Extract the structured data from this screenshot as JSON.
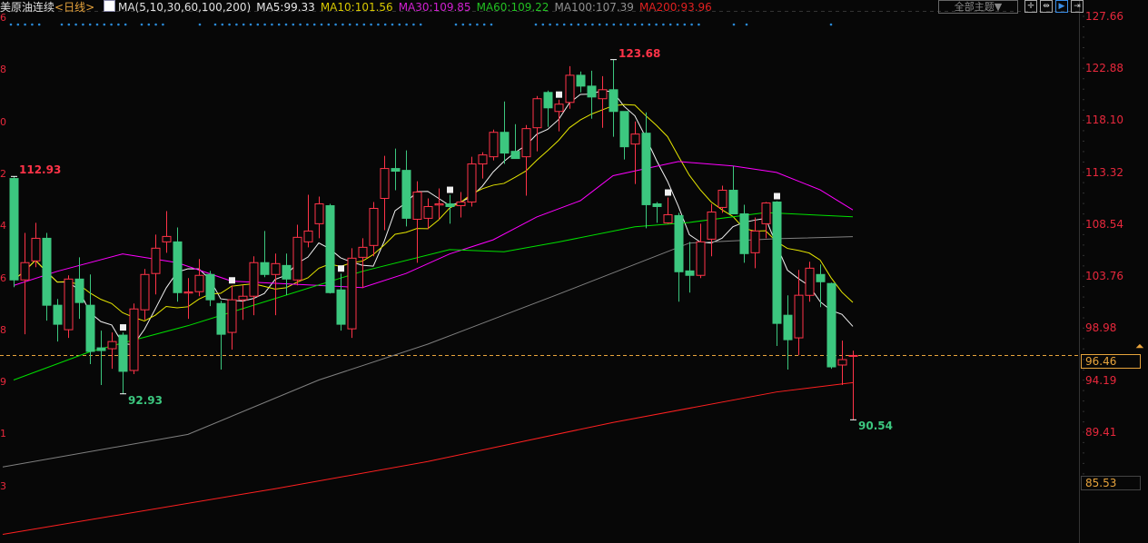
{
  "header": {
    "title": "美原油连续",
    "period": "<日线>",
    "ma_params": "MA(5,10,30,60,100,200)",
    "ma_values": [
      {
        "label": "MA5:99.33",
        "color": "#e8e8e8"
      },
      {
        "label": "MA10:101.56",
        "color": "#d8c800"
      },
      {
        "label": "MA30:109.85",
        "color": "#d020d0"
      },
      {
        "label": "MA60:109.22",
        "color": "#22c022"
      },
      {
        "label": "MA100:107.39",
        "color": "#909090"
      },
      {
        "label": "MA200:93.96",
        "color": "#e02020"
      }
    ]
  },
  "toolbar": {
    "theme_label": "全部主题▼",
    "buttons": [
      {
        "icon": "crosshair-icon",
        "glyph": "✛"
      },
      {
        "icon": "range-icon",
        "glyph": "⇹"
      },
      {
        "icon": "play-icon",
        "glyph": "▶",
        "active": true
      },
      {
        "icon": "extend-right-icon",
        "glyph": "⇥"
      }
    ]
  },
  "chart_data": {
    "type": "candlestick",
    "y_axis_ticks": [
      "127.66",
      "122.88",
      "118.10",
      "113.32",
      "108.54",
      "103.76",
      "98.98",
      "94.19",
      "89.41"
    ],
    "left_axis_partial": [
      "6",
      "8",
      "0",
      "2",
      "4",
      "6",
      "8",
      "9",
      "1",
      "3"
    ],
    "ylim": [
      83.0,
      128.5
    ],
    "current_price": "96.46",
    "cursor_price": "85.53",
    "up_color": "#ff3348",
    "down_color": "#3cc77f",
    "annotations": [
      {
        "text": "112.93",
        "candle": 0,
        "type": "high"
      },
      {
        "text": "123.68",
        "candle": 55,
        "type": "high"
      },
      {
        "text": "92.93",
        "candle": 10,
        "type": "low"
      },
      {
        "text": "90.54",
        "candle": 77,
        "type": "low"
      }
    ],
    "event_marker_candles": [
      10,
      20,
      30,
      40,
      50,
      60,
      70
    ],
    "ohlc": [
      [
        112.74,
        112.93,
        102.74,
        103.41
      ],
      [
        103.41,
        107.74,
        98.41,
        105.0
      ],
      [
        105.16,
        108.66,
        104.58,
        107.24
      ],
      [
        107.24,
        107.74,
        99.66,
        101.08
      ],
      [
        101.08,
        101.66,
        97.74,
        99.33
      ],
      [
        98.83,
        103.83,
        98.08,
        103.49
      ],
      [
        103.49,
        105.49,
        99.83,
        101.33
      ],
      [
        101.08,
        103.91,
        95.66,
        96.83
      ],
      [
        97.16,
        98.74,
        93.74,
        96.91
      ],
      [
        97.08,
        98.58,
        95.24,
        97.74
      ],
      [
        98.33,
        98.58,
        92.93,
        95.0
      ],
      [
        95.08,
        101.24,
        94.74,
        100.74
      ],
      [
        100.66,
        104.41,
        99.74,
        103.91
      ],
      [
        104.0,
        107.58,
        102.08,
        106.33
      ],
      [
        106.91,
        109.74,
        105.91,
        107.41
      ],
      [
        106.91,
        108.24,
        101.41,
        102.24
      ],
      [
        102.2,
        103.58,
        99.83,
        102.3
      ],
      [
        102.33,
        105.33,
        101.91,
        103.83
      ],
      [
        103.91,
        104.24,
        101.0,
        101.58
      ],
      [
        101.24,
        101.49,
        95.16,
        98.41
      ],
      [
        98.58,
        102.91,
        97.0,
        101.58
      ],
      [
        101.58,
        102.91,
        99.74,
        101.91
      ],
      [
        101.91,
        105.58,
        100.16,
        105.0
      ],
      [
        105.0,
        107.91,
        103.66,
        103.91
      ],
      [
        103.91,
        105.83,
        100.16,
        104.91
      ],
      [
        104.74,
        105.83,
        102.0,
        103.49
      ],
      [
        103.41,
        108.49,
        102.91,
        107.33
      ],
      [
        106.91,
        111.24,
        106.41,
        107.91
      ],
      [
        108.58,
        111.08,
        107.24,
        110.41
      ],
      [
        110.24,
        110.41,
        102.16,
        102.24
      ],
      [
        102.49,
        104.0,
        98.74,
        99.33
      ],
      [
        98.91,
        106.33,
        98.08,
        105.41
      ],
      [
        105.49,
        107.24,
        102.66,
        106.41
      ],
      [
        106.58,
        110.58,
        105.58,
        109.99
      ],
      [
        110.91,
        114.83,
        107.99,
        113.66
      ],
      [
        113.66,
        115.49,
        111.66,
        113.41
      ],
      [
        113.49,
        115.33,
        108.33,
        109.08
      ],
      [
        108.99,
        112.49,
        104.99,
        111.49
      ],
      [
        109.08,
        110.91,
        108.08,
        110.16
      ],
      [
        110.3,
        111.83,
        108.99,
        110.41
      ],
      [
        110.41,
        111.24,
        108.58,
        110.16
      ],
      [
        110.24,
        111.49,
        109.16,
        110.58
      ],
      [
        110.58,
        114.74,
        110.16,
        114.08
      ],
      [
        114.08,
        115.16,
        112.74,
        114.91
      ],
      [
        114.74,
        117.24,
        114.41,
        116.99
      ],
      [
        116.99,
        119.83,
        114.08,
        115.08
      ],
      [
        115.24,
        117.74,
        114.58,
        114.58
      ],
      [
        114.74,
        117.66,
        111.16,
        117.33
      ],
      [
        117.41,
        120.33,
        115.24,
        120.08
      ],
      [
        120.66,
        120.83,
        117.49,
        119.24
      ],
      [
        118.91,
        120.0,
        117.08,
        119.58
      ],
      [
        119.74,
        123.08,
        119.16,
        122.24
      ],
      [
        122.24,
        122.58,
        120.66,
        121.24
      ],
      [
        121.24,
        122.66,
        118.24,
        120.24
      ],
      [
        120.08,
        122.16,
        117.41,
        120.91
      ],
      [
        120.91,
        123.68,
        116.58,
        118.91
      ],
      [
        118.91,
        118.91,
        114.49,
        115.66
      ],
      [
        115.91,
        117.99,
        112.24,
        116.83
      ],
      [
        116.91,
        118.83,
        108.16,
        110.33
      ],
      [
        110.41,
        110.58,
        108.66,
        110.16
      ],
      [
        108.66,
        110.99,
        108.58,
        109.41
      ],
      [
        109.33,
        109.58,
        101.41,
        104.16
      ],
      [
        104.24,
        106.91,
        102.24,
        103.83
      ],
      [
        103.83,
        108.58,
        103.58,
        106.91
      ],
      [
        107.16,
        110.41,
        105.58,
        109.66
      ],
      [
        110.08,
        112.08,
        109.58,
        111.66
      ],
      [
        111.66,
        113.91,
        109.49,
        109.49
      ],
      [
        109.49,
        110.33,
        104.99,
        105.83
      ],
      [
        105.91,
        109.16,
        104.49,
        107.91
      ],
      [
        108.58,
        110.58,
        107.24,
        110.49
      ],
      [
        110.58,
        110.66,
        97.33,
        99.41
      ],
      [
        100.16,
        101.99,
        95.16,
        97.91
      ],
      [
        98.08,
        104.33,
        96.49,
        102.0
      ],
      [
        101.99,
        105.08,
        101.41,
        104.49
      ],
      [
        103.91,
        104.83,
        100.91,
        103.24
      ],
      [
        103.08,
        103.16,
        95.24,
        95.41
      ],
      [
        95.58,
        97.83,
        93.74,
        96.08
      ],
      [
        96.4,
        96.91,
        90.54,
        96.46
      ]
    ],
    "moving_averages": [
      {
        "name": "MA5",
        "period": 5,
        "color": "#f0f0f0"
      },
      {
        "name": "MA10",
        "period": 10,
        "color": "#e6e600"
      },
      {
        "name": "MA30",
        "color": "#ff00ff",
        "points": [
          [
            0,
            102.9
          ],
          [
            4,
            104.2
          ],
          [
            10,
            105.8
          ],
          [
            15,
            105.0
          ],
          [
            20,
            103.3
          ],
          [
            32,
            102.7
          ],
          [
            36,
            104.0
          ],
          [
            40,
            105.8
          ],
          [
            44,
            107.1
          ],
          [
            48,
            109.2
          ],
          [
            52,
            110.7
          ],
          [
            55,
            113.0
          ],
          [
            61,
            114.3
          ],
          [
            66,
            113.9
          ],
          [
            70,
            113.3
          ],
          [
            74,
            111.7
          ],
          [
            77,
            109.85
          ]
        ]
      },
      {
        "name": "MA60",
        "color": "#00e000",
        "points": [
          [
            0,
            94.2
          ],
          [
            7,
            96.8
          ],
          [
            16,
            99.2
          ],
          [
            24,
            101.7
          ],
          [
            32,
            104.2
          ],
          [
            40,
            106.2
          ],
          [
            45,
            106.0
          ],
          [
            50,
            106.9
          ],
          [
            57,
            108.3
          ],
          [
            62,
            108.7
          ],
          [
            69,
            109.6
          ],
          [
            77,
            109.22
          ]
        ]
      },
      {
        "name": "MA100",
        "color": "#808080",
        "points": [
          [
            -1,
            86.2
          ],
          [
            16,
            89.2
          ],
          [
            28,
            94.2
          ],
          [
            38,
            97.5
          ],
          [
            50,
            102.1
          ],
          [
            62,
            106.8
          ],
          [
            70,
            107.2
          ],
          [
            77,
            107.39
          ]
        ]
      },
      {
        "name": "MA200",
        "color": "#ff2020",
        "points": [
          [
            -1,
            80.0
          ],
          [
            24,
            84.2
          ],
          [
            38,
            86.7
          ],
          [
            55,
            90.3
          ],
          [
            70,
            93.1
          ],
          [
            77,
            93.96
          ]
        ]
      }
    ]
  }
}
